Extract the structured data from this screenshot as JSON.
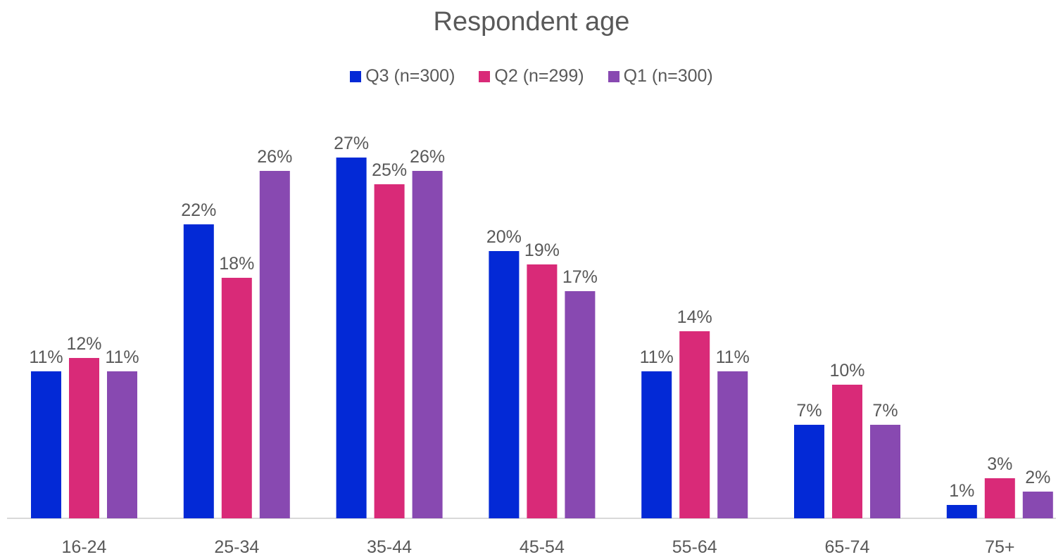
{
  "chart_data": {
    "type": "bar",
    "title": "Respondent age",
    "categories": [
      "16-24",
      "25-34",
      "35-44",
      "45-54",
      "55-64",
      "65-74",
      "75+"
    ],
    "series": [
      {
        "name": "Q3 (n=300)",
        "color": "#0329d6",
        "values": [
          11,
          22,
          27,
          20,
          11,
          7,
          1
        ]
      },
      {
        "name": "Q2 (n=299)",
        "color": "#d92a78",
        "values": [
          12,
          18,
          25,
          19,
          14,
          10,
          3
        ]
      },
      {
        "name": "Q1 (n=300)",
        "color": "#8849b1",
        "values": [
          11,
          26,
          26,
          17,
          11,
          7,
          2
        ]
      }
    ],
    "value_format": "percent",
    "ylim": [
      0,
      27.5
    ],
    "legend_position": "top",
    "grid": false
  }
}
